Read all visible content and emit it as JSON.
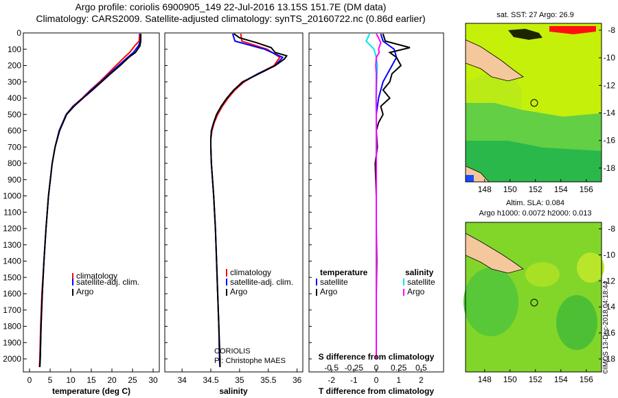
{
  "header": {
    "title_line1": "Argo profile: coriolis 6900905_149 22-Jul-2016 13.15S 151.7E (DM data)",
    "title_line2": "Climatology: CARS2009. Satellite-adjusted climatology: synTS_20160722.nc (0.86d earlier)"
  },
  "maps": {
    "sst_title": "sat. SST: 27 Argo: 26.9",
    "altim_line1": "Altim. SLA: 0.084",
    "altim_line2": "Argo h1000: 0.0072 h2000: 0.013",
    "lon_ticks": [
      "148",
      "150",
      "152",
      "154",
      "156"
    ],
    "lat_ticks": [
      "-8",
      "-10",
      "-12",
      "-14",
      "-16",
      "-18"
    ],
    "land_color": "#f5c79c",
    "sst_bg": "#c5f00a",
    "sla_bg": "#82d62a"
  },
  "credit": "©IMOS 13-Dec-2018 04:18:44",
  "source_note": {
    "line1": "CORIOLIS",
    "line2": "PI: Christophe MAES"
  },
  "legends": {
    "temp": [
      "climatology",
      "satellite-adj. clim.",
      "Argo"
    ],
    "sal": [
      "climatology",
      "satellite-adj. clim.",
      "Argo"
    ],
    "diff_head_left": "temperature",
    "diff_head_right": "salinity",
    "diff_sat": "satellite",
    "diff_argo": "Argo"
  },
  "colors": {
    "climatology": "#ff0000",
    "satellite": "#0000ff",
    "argo": "#000000",
    "sal_sat": "#00e8e8",
    "sal_argo": "#ff00ff"
  },
  "chart_data": [
    {
      "type": "line",
      "xlabel": "temperature (deg C)",
      "ylabel": "",
      "xlim": [
        -1.5,
        31.5
      ],
      "ylim": [
        2080,
        0
      ],
      "xticks": [
        0,
        5,
        10,
        15,
        20,
        25,
        30
      ],
      "yticks": [
        0,
        100,
        200,
        300,
        400,
        500,
        600,
        700,
        800,
        900,
        1000,
        1100,
        1200,
        1300,
        1400,
        1500,
        1600,
        1700,
        1800,
        1900,
        2000
      ],
      "series": [
        {
          "name": "climatology",
          "depth": [
            5,
            50,
            80,
            120,
            150,
            200,
            250,
            300,
            350,
            400,
            450,
            500,
            600,
            700,
            800,
            1000,
            1200,
            1400,
            1600,
            1800,
            2000,
            2050
          ],
          "values": [
            26.7,
            26.6,
            25.5,
            24.3,
            23.0,
            21.0,
            19.0,
            17.0,
            14.8,
            12.8,
            10.5,
            8.9,
            7.2,
            6.2,
            5.5,
            4.6,
            4.0,
            3.5,
            3.0,
            2.7,
            2.5,
            2.4
          ]
        },
        {
          "name": "satellite-adj. clim.",
          "depth": [
            5,
            50,
            80,
            120,
            150,
            200,
            250,
            300,
            350,
            400,
            450,
            500,
            600,
            700,
            800,
            1000,
            1200,
            1400,
            1600,
            1800,
            2000,
            2050
          ],
          "values": [
            26.9,
            26.9,
            26.4,
            25.2,
            23.8,
            21.6,
            19.4,
            17.3,
            15.0,
            12.9,
            10.6,
            8.9,
            7.2,
            6.2,
            5.5,
            4.6,
            4.0,
            3.5,
            3.1,
            2.8,
            2.6,
            2.5
          ]
        },
        {
          "name": "Argo",
          "depth": [
            5,
            50,
            80,
            120,
            150,
            200,
            250,
            300,
            350,
            400,
            450,
            500,
            600,
            700,
            800,
            1000,
            1200,
            1400,
            1600,
            1800,
            2000,
            2050
          ],
          "values": [
            27.0,
            27.0,
            26.8,
            25.7,
            24.1,
            22.0,
            19.7,
            17.5,
            15.3,
            13.0,
            10.8,
            9.0,
            7.3,
            6.2,
            5.5,
            4.6,
            4.0,
            3.5,
            3.1,
            2.8,
            2.6,
            2.5
          ]
        }
      ]
    },
    {
      "type": "line",
      "xlabel": "salinity",
      "xlim": [
        33.7,
        36.1
      ],
      "ylim": [
        2080,
        0
      ],
      "xticks": [
        34,
        34.5,
        35,
        35.5,
        36
      ],
      "series": [
        {
          "name": "climatology",
          "depth": [
            5,
            50,
            100,
            150,
            200,
            250,
            300,
            350,
            400,
            450,
            500,
            550,
            600,
            650,
            700,
            800,
            900,
            1000,
            1200,
            1400,
            1600,
            1800,
            2000,
            2050
          ],
          "values": [
            35.02,
            35.04,
            35.48,
            35.7,
            35.6,
            35.32,
            35.08,
            34.92,
            34.8,
            34.7,
            34.62,
            34.56,
            34.52,
            34.5,
            34.5,
            34.51,
            34.53,
            34.55,
            34.58,
            34.6,
            34.62,
            34.64,
            34.65,
            34.66
          ]
        },
        {
          "name": "satellite-adj. clim.",
          "depth": [
            5,
            50,
            100,
            150,
            200,
            250,
            300,
            350,
            400,
            450,
            500,
            550,
            600,
            650,
            700,
            800,
            900,
            1000,
            1200,
            1400,
            1600,
            1800,
            2000,
            2050
          ],
          "values": [
            34.88,
            34.92,
            35.44,
            35.75,
            35.62,
            35.32,
            35.06,
            34.9,
            34.78,
            34.68,
            34.6,
            34.55,
            34.51,
            34.5,
            34.5,
            34.51,
            34.53,
            34.55,
            34.58,
            34.6,
            34.62,
            34.64,
            34.65,
            34.66
          ]
        },
        {
          "name": "Argo",
          "depth": [
            5,
            30,
            60,
            90,
            120,
            140,
            160,
            200,
            250,
            300,
            350,
            400,
            450,
            500,
            550,
            600,
            650,
            700,
            800,
            900,
            1000,
            1200,
            1400,
            1600,
            1800,
            2000,
            2050
          ],
          "values": [
            34.9,
            35.0,
            35.3,
            35.55,
            35.62,
            35.82,
            35.78,
            35.62,
            35.34,
            35.05,
            34.9,
            34.78,
            34.68,
            34.6,
            34.55,
            34.51,
            34.5,
            34.5,
            34.51,
            34.53,
            34.55,
            34.58,
            34.6,
            34.62,
            34.64,
            34.66,
            34.66
          ]
        }
      ]
    },
    {
      "type": "line",
      "xlabel": "T difference from climatology",
      "xlabel_top": "S difference from climatology",
      "xlim": [
        -3,
        3
      ],
      "ylim": [
        2080,
        0
      ],
      "xticks": [
        -2,
        -1,
        0,
        1,
        2
      ],
      "xticks_top": [
        "-0.5",
        "-0.25",
        "0",
        "0.25",
        "0.5"
      ],
      "series": [
        {
          "name": "temperature satellite",
          "depth": [
            5,
            50,
            100,
            150,
            200,
            250,
            300,
            400,
            500,
            600,
            700,
            800,
            1000,
            1200,
            1400,
            1600,
            1800,
            2000
          ],
          "values": [
            0.2,
            0.3,
            0.8,
            0.9,
            0.7,
            0.5,
            0.3,
            0.1,
            0.0,
            0.0,
            0.0,
            0.0,
            0.0,
            0.0,
            0.0,
            0.0,
            0.0,
            0.0
          ]
        },
        {
          "name": "temperature Argo",
          "depth": [
            5,
            50,
            90,
            120,
            150,
            200,
            250,
            300,
            350,
            400,
            450,
            500,
            550,
            600,
            700,
            800,
            1000,
            1200,
            1400,
            1600,
            1800,
            2000
          ],
          "values": [
            0.3,
            0.4,
            1.5,
            0.6,
            0.9,
            1.1,
            0.7,
            0.6,
            0.3,
            0.6,
            0.2,
            0.3,
            0.1,
            0.0,
            0.05,
            -0.05,
            0.0,
            0.0,
            0.02,
            0.0,
            0.0,
            0.0
          ]
        },
        {
          "name": "salinity satellite",
          "depth": [
            5,
            50,
            100,
            150,
            200,
            300,
            400,
            500,
            600,
            700,
            800,
            900,
            1000,
            1200,
            1400,
            1600,
            1800,
            2000
          ],
          "values": [
            -0.3,
            -0.45,
            -0.1,
            0.0,
            0.05,
            0.02,
            0.0,
            0.0,
            0.0,
            0.01,
            0.0,
            0.0,
            0.0,
            0.0,
            0.0,
            0.0,
            0.0,
            0.0
          ]
        },
        {
          "name": "salinity Argo",
          "depth": [
            5,
            30,
            60,
            100,
            120,
            150,
            200,
            250,
            300,
            400,
            500,
            600,
            700,
            800,
            1000,
            1200,
            1400,
            1600,
            1800,
            2000
          ],
          "values": [
            0.0,
            0.1,
            0.2,
            0.1,
            0.13,
            0.0,
            -0.02,
            0.0,
            0.0,
            -0.01,
            0.0,
            0.0,
            0.0,
            0.0,
            0.0,
            0.0,
            0.0,
            0.0,
            0.0,
            0.0
          ]
        }
      ]
    }
  ]
}
